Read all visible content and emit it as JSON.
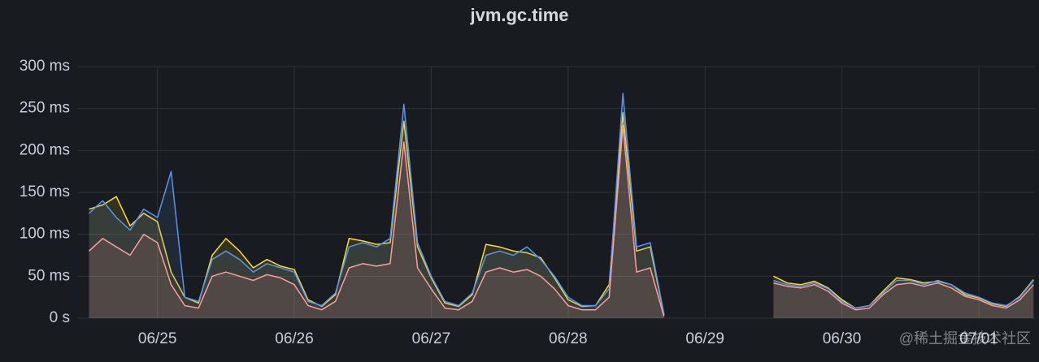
{
  "chart_data": {
    "type": "line",
    "title": "jvm.gc.time",
    "watermark": "@稀土掘金技术社区",
    "x": [
      0.5,
      0.6,
      0.7,
      0.8,
      0.9,
      1.0,
      1.1,
      1.2,
      1.3,
      1.4,
      1.5,
      1.6,
      1.7,
      1.8,
      1.9,
      2.0,
      2.1,
      2.2,
      2.3,
      2.4,
      2.5,
      2.6,
      2.7,
      2.8,
      2.9,
      3.0,
      3.1,
      3.2,
      3.3,
      3.4,
      3.5,
      3.6,
      3.7,
      3.8,
      3.9,
      4.0,
      4.1,
      4.2,
      4.3,
      4.4,
      4.5,
      4.6,
      4.7,
      4.8,
      4.9,
      5.0,
      5.1,
      5.2,
      5.3,
      5.4,
      5.5,
      5.6,
      5.7,
      5.8,
      5.9,
      6.0,
      6.1,
      6.2,
      6.3,
      6.4,
      6.5,
      6.6,
      6.7,
      6.8,
      6.9,
      7.0,
      7.1,
      7.2,
      7.3,
      7.4
    ],
    "series": [
      {
        "color": "#fade2a",
        "values": [
          130,
          135,
          145,
          110,
          125,
          115,
          55,
          25,
          18,
          75,
          95,
          80,
          60,
          70,
          62,
          58,
          22,
          14,
          28,
          95,
          92,
          88,
          90,
          235,
          85,
          48,
          18,
          14,
          28,
          88,
          85,
          80,
          78,
          72,
          48,
          22,
          14,
          15,
          40,
          245,
          80,
          85,
          4,
          null,
          null,
          null,
          null,
          null,
          null,
          null,
          50,
          42,
          40,
          44,
          36,
          22,
          12,
          15,
          32,
          48,
          46,
          42,
          44,
          40,
          28,
          24,
          17,
          14,
          26,
          46
        ]
      },
      {
        "color": "#5794f2",
        "values": [
          125,
          140,
          120,
          105,
          130,
          120,
          175,
          25,
          20,
          70,
          80,
          70,
          55,
          65,
          60,
          55,
          20,
          15,
          30,
          85,
          90,
          85,
          95,
          255,
          90,
          50,
          20,
          15,
          30,
          75,
          80,
          75,
          85,
          70,
          50,
          25,
          15,
          15,
          35,
          268,
          85,
          90,
          5,
          null,
          null,
          null,
          null,
          null,
          null,
          null,
          45,
          40,
          38,
          42,
          35,
          20,
          12,
          15,
          30,
          45,
          45,
          40,
          45,
          40,
          30,
          25,
          18,
          15,
          25,
          45
        ]
      },
      {
        "color": "#ff9d9d",
        "values": [
          80,
          95,
          85,
          75,
          100,
          90,
          40,
          15,
          12,
          50,
          55,
          50,
          45,
          52,
          48,
          40,
          15,
          10,
          20,
          60,
          65,
          62,
          65,
          210,
          60,
          35,
          12,
          10,
          20,
          55,
          60,
          55,
          58,
          50,
          35,
          15,
          10,
          10,
          25,
          230,
          55,
          60,
          2,
          null,
          null,
          null,
          null,
          null,
          null,
          null,
          42,
          38,
          36,
          40,
          32,
          18,
          10,
          12,
          28,
          40,
          42,
          38,
          42,
          36,
          26,
          22,
          15,
          12,
          22,
          40
        ]
      }
    ],
    "xlim": [
      0.42,
      7.41
    ],
    "xticks": [
      {
        "value": 1,
        "label": "06/25"
      },
      {
        "value": 2,
        "label": "06/26"
      },
      {
        "value": 3,
        "label": "06/27"
      },
      {
        "value": 4,
        "label": "06/28"
      },
      {
        "value": 5,
        "label": "06/29"
      },
      {
        "value": 6,
        "label": "06/30"
      },
      {
        "value": 7,
        "label": "07/01"
      }
    ],
    "ylim": [
      0,
      300
    ],
    "yticks": [
      {
        "value": 0,
        "label": "0 s"
      },
      {
        "value": 50,
        "label": "50 ms"
      },
      {
        "value": 100,
        "label": "100 ms"
      },
      {
        "value": 150,
        "label": "150 ms"
      },
      {
        "value": 200,
        "label": "200 ms"
      },
      {
        "value": 250,
        "label": "250 ms"
      },
      {
        "value": 300,
        "label": "300 ms"
      }
    ],
    "grid": true
  }
}
